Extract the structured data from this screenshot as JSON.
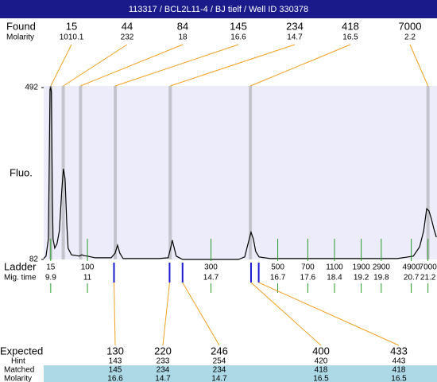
{
  "title": "113317 / BCL2L11-4 / BJ tielf / Well ID 330378",
  "found": {
    "label": "Found",
    "molarity_label": "Molarity",
    "sizes": [
      15,
      44,
      84,
      145,
      234,
      418,
      7000
    ],
    "molarity": [
      1010.1,
      232,
      18,
      16.6,
      14.7,
      16.5,
      2.2
    ]
  },
  "chart_data": {
    "type": "line",
    "ylabel": "Fluo.",
    "xlim": [
      9.69,
      21.47
    ],
    "ylim": [
      82,
      492
    ],
    "yticks": [
      82,
      492
    ],
    "color": "#000000",
    "background": "#ececfa",
    "x": [
      9.69,
      9.76,
      9.83,
      9.88,
      9.9,
      9.92,
      9.95,
      9.97,
      10.02,
      10.09,
      10.16,
      10.23,
      10.28,
      10.33,
      10.38,
      10.42,
      10.52,
      10.76,
      10.83,
      10.9,
      11.0,
      11.23,
      11.71,
      11.83,
      11.9,
      11.97,
      12.07,
      13.14,
      13.42,
      13.5,
      13.54,
      13.59,
      13.66,
      13.85,
      15.52,
      15.71,
      15.8,
      15.9,
      15.97,
      16.04,
      16.14,
      16.47,
      20.28,
      20.76,
      20.95,
      21.07,
      21.16,
      21.23,
      21.3,
      21.38,
      21.45
    ],
    "values": [
      84,
      90,
      131,
      488,
      492,
      482,
      226,
      131,
      109,
      120,
      150,
      245,
      298,
      274,
      169,
      109,
      93,
      90,
      93,
      91,
      90,
      86,
      86,
      97,
      116,
      97,
      84,
      84,
      86,
      112,
      128,
      112,
      90,
      82,
      82,
      88,
      116,
      147,
      131,
      101,
      88,
      84,
      84,
      90,
      112,
      150,
      203,
      198,
      179,
      154,
      135
    ]
  },
  "ladder": {
    "label": "Ladder",
    "mig_time_label": "Mig. time",
    "sizes": [
      15,
      100,
      300,
      500,
      700,
      1100,
      1900,
      2900,
      4900,
      7000
    ],
    "mig_times": [
      9.9,
      11,
      14.7,
      16.7,
      17.6,
      18.4,
      19.2,
      19.8,
      20.7,
      21.2
    ]
  },
  "expected": {
    "label": "Expected",
    "hint_label": "Hint",
    "matched_label": "Matched",
    "molarity_label": "Molarity",
    "sizes": [
      130,
      220,
      246,
      400,
      433
    ],
    "hint": [
      143,
      233,
      254,
      420,
      443
    ],
    "matched": [
      145,
      234,
      234,
      418,
      418
    ],
    "molarity": [
      16.6,
      14.7,
      14.7,
      16.5,
      16.5
    ]
  }
}
